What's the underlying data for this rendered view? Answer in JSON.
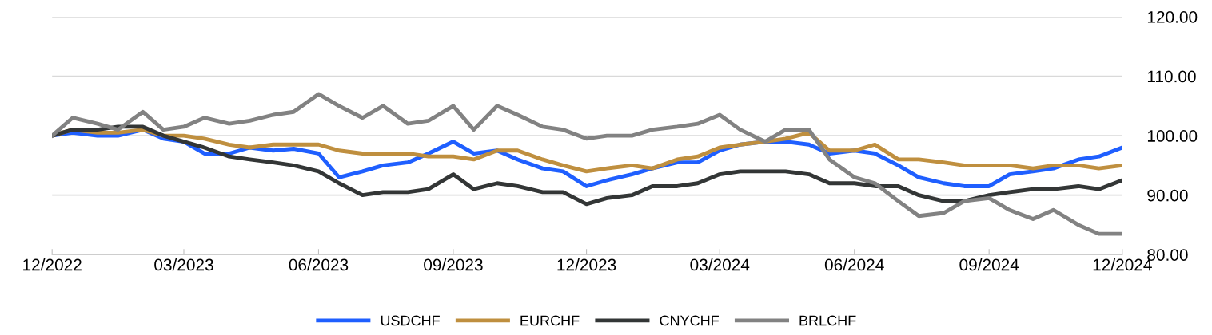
{
  "chart_data": {
    "type": "line",
    "x": [
      "2022-12-01",
      "2022-12-15",
      "2023-01-01",
      "2023-01-15",
      "2023-02-01",
      "2023-02-15",
      "2023-03-01",
      "2023-03-15",
      "2023-04-01",
      "2023-04-15",
      "2023-05-01",
      "2023-05-15",
      "2023-06-01",
      "2023-06-15",
      "2023-07-01",
      "2023-07-15",
      "2023-08-01",
      "2023-08-15",
      "2023-09-01",
      "2023-09-15",
      "2023-10-01",
      "2023-10-15",
      "2023-11-01",
      "2023-11-15",
      "2023-12-01",
      "2023-12-15",
      "2024-01-01",
      "2024-01-15",
      "2024-02-01",
      "2024-02-15",
      "2024-03-01",
      "2024-03-15",
      "2024-04-01",
      "2024-04-15",
      "2024-05-01",
      "2024-05-15",
      "2024-06-01",
      "2024-06-15",
      "2024-07-01",
      "2024-07-15",
      "2024-08-01",
      "2024-08-15",
      "2024-09-01",
      "2024-09-15",
      "2024-10-01",
      "2024-10-15",
      "2024-11-01",
      "2024-11-15",
      "2024-12-01"
    ],
    "series": [
      {
        "name": "USDCHF",
        "color": "#1f5fff",
        "values": [
          100,
          100.5,
          100,
          100,
          101,
          99.5,
          99,
          97,
          97,
          98,
          97.5,
          97.8,
          97,
          93,
          94,
          95,
          95.5,
          97,
          99,
          97,
          97.5,
          96,
          94.5,
          94,
          91.5,
          92.5,
          93.5,
          94.5,
          95.5,
          95.5,
          97.5,
          98.5,
          99,
          99,
          98.5,
          97,
          97.5,
          97,
          95,
          93,
          92,
          91.5,
          91.5,
          93.5,
          94,
          94.5,
          96,
          96.5,
          98
        ]
      },
      {
        "name": "EURCHF",
        "color": "#bf8f3f",
        "values": [
          100,
          101,
          100.5,
          100.5,
          101,
          100,
          100,
          99.5,
          98.5,
          98,
          98.5,
          98.5,
          98.5,
          97.5,
          97,
          97,
          97,
          96.5,
          96.5,
          96,
          97.5,
          97.5,
          96,
          95,
          94,
          94.5,
          95,
          94.5,
          96,
          96.5,
          98,
          98.5,
          99,
          99.5,
          100.5,
          97.5,
          97.5,
          98.5,
          96,
          96,
          95.5,
          95,
          95,
          95,
          94.5,
          95,
          95,
          94.5,
          95
        ]
      },
      {
        "name": "CNYCHF",
        "color": "#333636",
        "values": [
          100,
          101,
          101,
          101.5,
          101.5,
          100,
          99,
          98,
          96.5,
          96,
          95.5,
          95,
          94,
          92,
          90,
          90.5,
          90.5,
          91,
          93.5,
          91,
          92,
          91.5,
          90.5,
          90.5,
          88.5,
          89.5,
          90,
          91.5,
          91.5,
          92,
          93.5,
          94,
          94,
          94,
          93.5,
          92,
          92,
          91.5,
          91.5,
          90,
          89,
          89,
          90,
          90.5,
          91,
          91,
          91.5,
          91,
          92.5
        ]
      },
      {
        "name": "BRLCHF",
        "color": "#828282",
        "values": [
          100,
          103,
          102,
          101,
          104,
          101,
          101.5,
          103,
          102,
          102.5,
          103.5,
          104,
          107,
          105,
          103,
          105,
          102,
          102.5,
          105,
          101,
          105,
          103.5,
          101.5,
          101,
          99.5,
          100,
          100,
          101,
          101.5,
          102,
          103.5,
          101,
          99,
          101,
          101,
          96,
          93,
          92,
          89,
          86.5,
          87,
          89,
          89.5,
          87.5,
          86,
          87.5,
          85,
          83.5,
          83.5
        ]
      }
    ],
    "xlim": [
      "2022-12-01",
      "2024-12-01"
    ],
    "xticks": [
      {
        "value": "2022-12-01",
        "label": "12/2022"
      },
      {
        "value": "2023-03-01",
        "label": "03/2023"
      },
      {
        "value": "2023-06-01",
        "label": "06/2023"
      },
      {
        "value": "2023-09-01",
        "label": "09/2023"
      },
      {
        "value": "2023-12-01",
        "label": "12/2023"
      },
      {
        "value": "2024-03-01",
        "label": "03/2024"
      },
      {
        "value": "2024-06-01",
        "label": "06/2024"
      },
      {
        "value": "2024-09-01",
        "label": "09/2024"
      },
      {
        "value": "2024-12-01",
        "label": "12/2024"
      }
    ],
    "ylim": [
      80,
      120
    ],
    "yticks": [
      {
        "value": 80,
        "label": "80.00"
      },
      {
        "value": 90,
        "label": "90.00"
      },
      {
        "value": 100,
        "label": "100.00"
      },
      {
        "value": 110,
        "label": "110.00"
      },
      {
        "value": 120,
        "label": "120.00"
      }
    ],
    "grid": "y",
    "legend": "bottom",
    "marker": "none",
    "line_style": "solid"
  }
}
